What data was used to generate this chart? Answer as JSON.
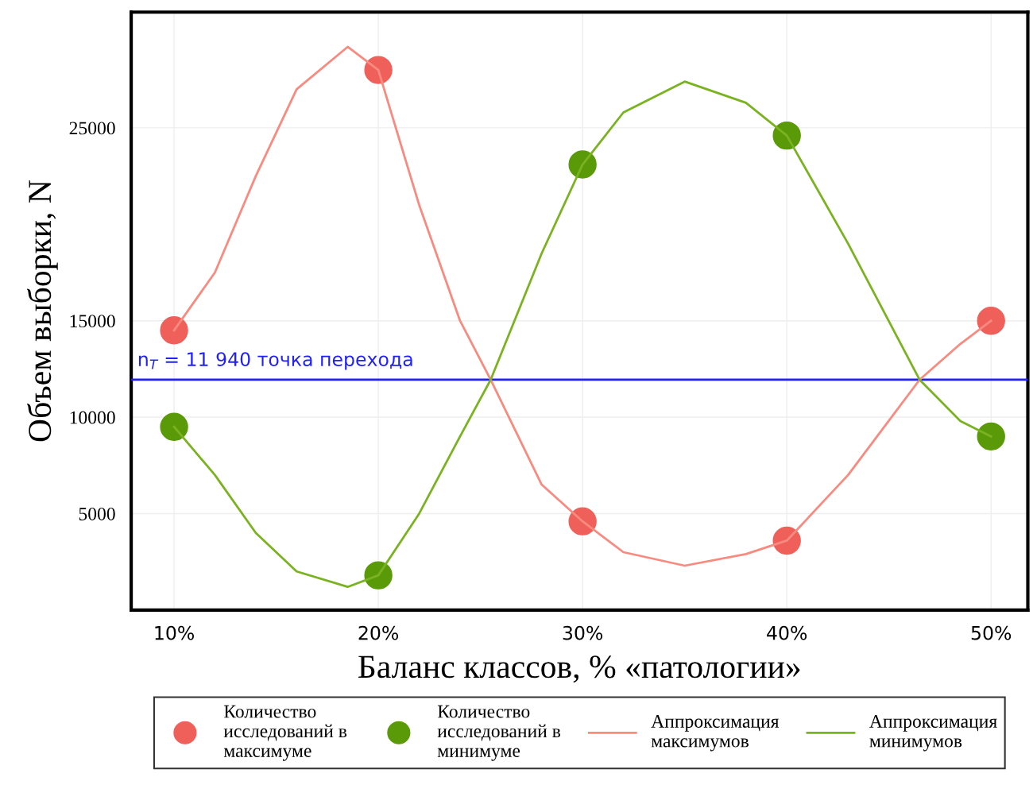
{
  "chart_data": {
    "type": "scatter",
    "xlabel": "Баланс классов, % «патологии»",
    "ylabel": "Объем выборки, N",
    "xlim": [
      7.9,
      51.8
    ],
    "xticks": [
      {
        "value": 10,
        "label": "10%"
      },
      {
        "value": 20,
        "label": "20%"
      },
      {
        "value": 30,
        "label": "30%"
      },
      {
        "value": 40,
        "label": "40%"
      },
      {
        "value": 50,
        "label": "50%"
      }
    ],
    "ylim": [
      0,
      31000
    ],
    "yticks": [
      5000,
      10000,
      15000,
      25000
    ],
    "grid": true,
    "legend": "bottom",
    "marker": "circle",
    "series": [
      {
        "name": "Количество исследований в максимуме",
        "color": "#f0605a",
        "x": [
          10,
          20,
          30,
          40,
          50
        ],
        "values": [
          14500,
          28000,
          4600,
          3600,
          15000
        ]
      },
      {
        "name": "Количество исследований в минимуме",
        "color": "#5a9a08",
        "x": [
          10,
          20,
          30,
          40,
          50
        ],
        "values": [
          9500,
          1800,
          23100,
          24600,
          9000
        ]
      },
      {
        "name": "Аппроксимация максимумов",
        "type": "line",
        "marker": "none",
        "color": "#f88a80",
        "x": [
          10,
          12,
          14,
          16,
          18.5,
          20,
          22,
          24,
          25.5,
          28,
          30,
          32,
          35,
          38,
          40,
          43,
          46.5,
          48.5,
          50
        ],
        "values": [
          14500,
          17500,
          22500,
          27000,
          29200,
          28000,
          21000,
          15000,
          11940,
          6500,
          4600,
          3000,
          2300,
          2900,
          3600,
          7000,
          11940,
          13800,
          15000
        ]
      },
      {
        "name": "Аппроксимация минимумов",
        "type": "line",
        "marker": "none",
        "color": "#7ab320",
        "x": [
          10,
          12,
          14,
          16,
          18.5,
          20,
          22,
          24,
          25.5,
          28,
          30,
          32,
          35,
          38,
          40,
          43,
          46.5,
          48.5,
          50
        ],
        "values": [
          9500,
          7000,
          4000,
          2000,
          1200,
          1800,
          5000,
          9000,
          11940,
          18500,
          23100,
          25800,
          27400,
          26300,
          24600,
          19000,
          11940,
          9800,
          9000
        ]
      }
    ],
    "ref_lines": [
      {
        "axis": "y",
        "value": 11940,
        "label": "n$_{T}$ = 11 940 точка перехода",
        "color": "#2020ff"
      }
    ]
  }
}
